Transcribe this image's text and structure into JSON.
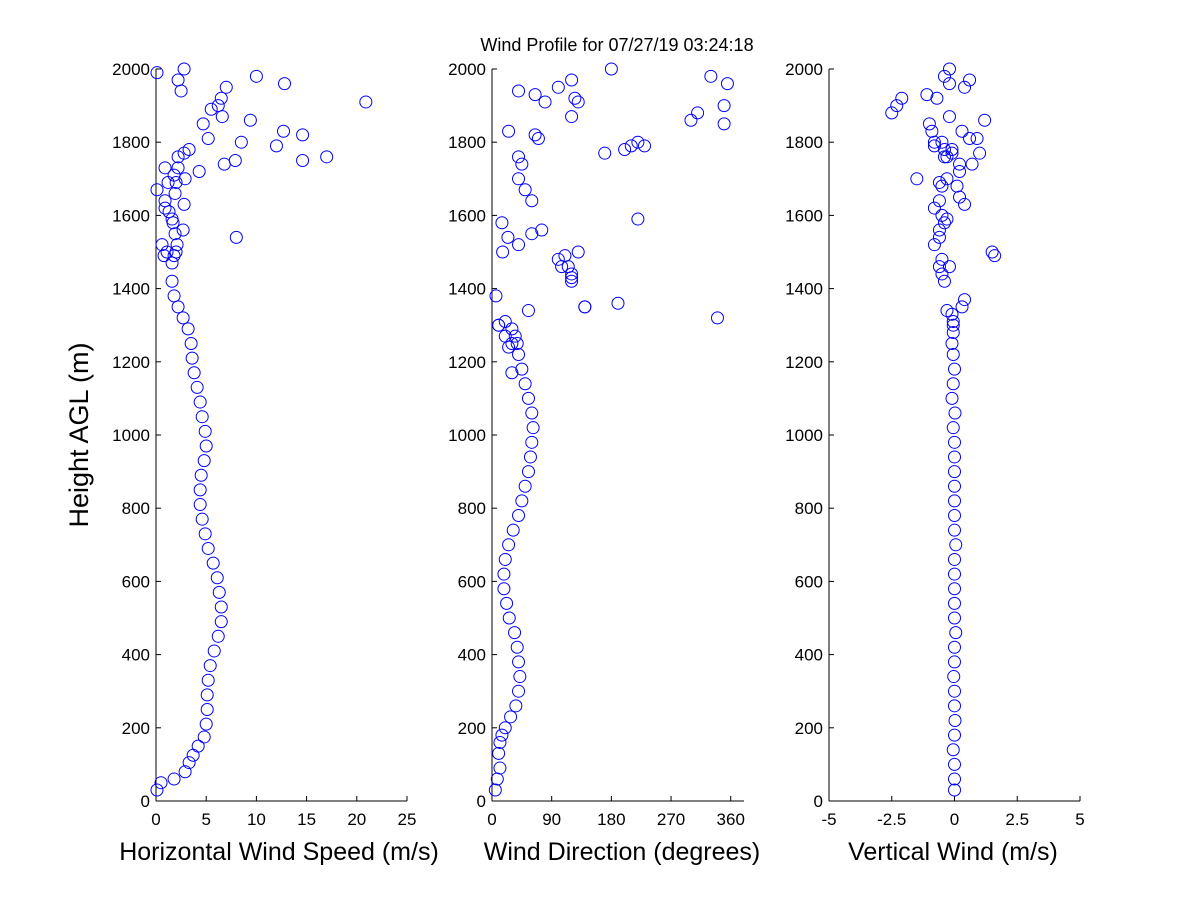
{
  "figure": {
    "title": "Wind Profile for  07/27/19 03:24:18",
    "background": "#ffffff",
    "marker_color": "#0000ff",
    "marker": "open-circle"
  },
  "chart_data": [
    {
      "type": "scatter",
      "xlabel": "Horizontal Wind Speed (m/s)",
      "ylabel": "Height AGL (m)",
      "xlim": [
        0,
        25
      ],
      "ylim": [
        0,
        2000
      ],
      "xticks": [
        "0",
        "5",
        "10",
        "15",
        "20",
        "25"
      ],
      "yticks": [
        "0",
        "200",
        "400",
        "600",
        "800",
        "1000",
        "1200",
        "1400",
        "1600",
        "1800",
        "2000"
      ],
      "grid": false,
      "x": [
        0.1,
        0.5,
        1.8,
        2.9,
        3.3,
        3.7,
        4.2,
        4.8,
        5.0,
        5.1,
        5.1,
        5.2,
        5.4,
        5.8,
        6.2,
        6.5,
        6.5,
        6.3,
        6.1,
        5.7,
        5.2,
        4.9,
        4.6,
        4.4,
        4.4,
        4.5,
        4.8,
        5.0,
        4.9,
        4.6,
        4.4,
        4.1,
        3.8,
        3.6,
        3.5,
        3.2,
        2.7,
        2.2,
        1.8,
        1.6,
        1.6,
        1.8,
        2.0,
        2.1,
        1.9,
        1.7,
        1.3,
        0.9,
        0.1,
        2.0,
        1.8,
        2.2,
        14.6,
        17.0,
        0.8,
        1.1,
        0.6,
        8.0,
        2.7,
        1.6,
        0.9,
        2.8,
        1.9,
        1.2,
        2.9,
        0.9,
        4.3,
        6.8,
        7.9,
        3.3,
        2.2,
        2.8,
        8.5,
        12.0,
        5.2,
        4.7,
        12.7,
        14.6,
        6.6,
        9.4,
        5.5,
        6.2,
        20.9,
        2.5,
        6.5,
        7.0,
        2.2,
        10.0,
        12.8,
        2.8,
        0.1
      ],
      "y": [
        30,
        50,
        60,
        80,
        105,
        125,
        150,
        175,
        210,
        250,
        290,
        330,
        370,
        410,
        450,
        490,
        530,
        570,
        610,
        650,
        690,
        730,
        770,
        810,
        850,
        890,
        930,
        970,
        1010,
        1050,
        1090,
        1130,
        1170,
        1210,
        1250,
        1290,
        1320,
        1350,
        1380,
        1420,
        1470,
        1490,
        1500,
        1520,
        1550,
        1580,
        1610,
        1640,
        1670,
        1690,
        1710,
        1730,
        1750,
        1760,
        1490,
        1500,
        1520,
        1540,
        1560,
        1590,
        1620,
        1630,
        1660,
        1690,
        1700,
        1730,
        1720,
        1740,
        1750,
        1780,
        1760,
        1770,
        1800,
        1790,
        1810,
        1850,
        1830,
        1820,
        1870,
        1860,
        1890,
        1900,
        1910,
        1940,
        1920,
        1950,
        1970,
        1980,
        1960,
        2000,
        1990
      ]
    },
    {
      "type": "scatter",
      "xlabel": "Wind Direction (degrees)",
      "ylabel": "",
      "xlim": [
        0,
        380
      ],
      "ylim": [
        0,
        2000
      ],
      "xticks": [
        "0",
        "90",
        "180",
        "270",
        "360"
      ],
      "xtick_values": [
        0,
        90,
        180,
        270,
        360
      ],
      "yticks": [
        "0",
        "200",
        "400",
        "600",
        "800",
        "1000",
        "1200",
        "1400",
        "1600",
        "1800",
        "2000"
      ],
      "grid": false,
      "x": [
        5,
        8,
        12,
        10,
        12,
        15,
        20,
        28,
        36,
        40,
        42,
        40,
        38,
        34,
        26,
        22,
        18,
        18,
        20,
        25,
        32,
        40,
        45,
        50,
        55,
        58,
        60,
        62,
        60,
        55,
        50,
        45,
        40,
        38,
        35,
        30,
        20,
        10,
        6,
        15,
        24,
        40,
        16,
        30,
        120,
        220,
        120,
        115,
        110,
        20,
        25,
        30,
        340,
        140,
        55,
        60,
        100,
        105,
        120,
        130,
        140,
        190,
        350,
        200,
        210,
        70,
        65,
        60,
        40,
        50,
        25,
        75,
        120,
        10,
        170,
        220,
        230,
        40,
        65,
        80,
        180,
        300,
        310,
        330,
        350,
        355,
        125,
        130,
        100,
        120,
        40,
        45
      ],
      "y": [
        30,
        60,
        90,
        130,
        160,
        180,
        200,
        230,
        260,
        300,
        340,
        380,
        420,
        460,
        500,
        540,
        580,
        620,
        660,
        700,
        740,
        780,
        820,
        860,
        900,
        940,
        980,
        1020,
        1060,
        1100,
        1140,
        1180,
        1220,
        1250,
        1270,
        1290,
        1310,
        1300,
        1380,
        1580,
        1540,
        1520,
        1500,
        1170,
        1440,
        1590,
        1420,
        1460,
        1490,
        1270,
        1240,
        1250,
        1320,
        1350,
        1340,
        1550,
        1480,
        1460,
        1430,
        1500,
        1350,
        1360,
        1850,
        1780,
        1790,
        1810,
        1820,
        1640,
        1700,
        1670,
        1830,
        1560,
        1870,
        1300,
        1770,
        1800,
        1790,
        1940,
        1930,
        1910,
        2000,
        1860,
        1880,
        1980,
        1900,
        1960,
        1920,
        1910,
        1950,
        1970,
        1760,
        1740
      ]
    },
    {
      "type": "scatter",
      "xlabel": "Vertical Wind (m/s)",
      "ylabel": "",
      "xlim": [
        -5,
        5
      ],
      "ylim": [
        0,
        2000
      ],
      "xticks": [
        "-5",
        "-2.5",
        "0",
        "2.5",
        "5"
      ],
      "xtick_values": [
        -5,
        -2.5,
        0,
        2.5,
        5
      ],
      "yticks": [
        "0",
        "200",
        "400",
        "600",
        "800",
        "1000",
        "1200",
        "1400",
        "1600",
        "1800",
        "2000"
      ],
      "grid": false,
      "x": [
        0,
        0,
        0,
        -0.05,
        0,
        0.02,
        0,
        0,
        -0.03,
        0,
        0,
        0.05,
        0,
        0,
        0,
        0,
        0,
        0.05,
        0,
        0,
        0,
        0,
        0,
        0,
        0,
        -0.05,
        0.02,
        -0.1,
        -0.05,
        0,
        -0.05,
        -0.1,
        -0.05,
        -0.05,
        -0.05,
        -0.1,
        -0.3,
        -0.4,
        -0.5,
        -0.6,
        -0.5,
        -0.2,
        0.3,
        0.4,
        -0.8,
        -0.6,
        -0.6,
        -0.4,
        -0.3,
        -0.5,
        -0.8,
        -0.6,
        -1.5,
        -0.6,
        0.4,
        0.2,
        0.1,
        0.2,
        -0.3,
        -0.1,
        1.5,
        1.6,
        -0.5,
        -0.3,
        0.7,
        1.0,
        0.6,
        0.3,
        -0.2,
        -2.5,
        -2.3,
        -1.0,
        -0.8,
        -0.8,
        -0.4,
        -0.1,
        -0.4,
        -0.9,
        -0.7,
        -2.1,
        -1.1,
        -0.2,
        -0.4,
        0.4,
        0.6,
        -0.2,
        1.2,
        0.9,
        0.2,
        -0.5
      ],
      "y": [
        30,
        60,
        100,
        140,
        180,
        220,
        260,
        300,
        340,
        380,
        420,
        460,
        500,
        540,
        580,
        620,
        660,
        700,
        740,
        780,
        820,
        860,
        900,
        940,
        980,
        1020,
        1060,
        1100,
        1140,
        1180,
        1220,
        1250,
        1280,
        1300,
        1310,
        1330,
        1340,
        1420,
        1440,
        1460,
        1480,
        1460,
        1350,
        1370,
        1520,
        1540,
        1560,
        1580,
        1590,
        1600,
        1620,
        1640,
        1700,
        1690,
        1630,
        1650,
        1680,
        1720,
        1760,
        1780,
        1500,
        1490,
        1680,
        1700,
        1740,
        1770,
        1810,
        1830,
        1870,
        1880,
        1900,
        1850,
        1800,
        1790,
        1780,
        1770,
        1760,
        1830,
        1920,
        1920,
        1930,
        1960,
        1980,
        1950,
        1970,
        2000,
        1860,
        1810,
        1740,
        1800
      ]
    }
  ]
}
